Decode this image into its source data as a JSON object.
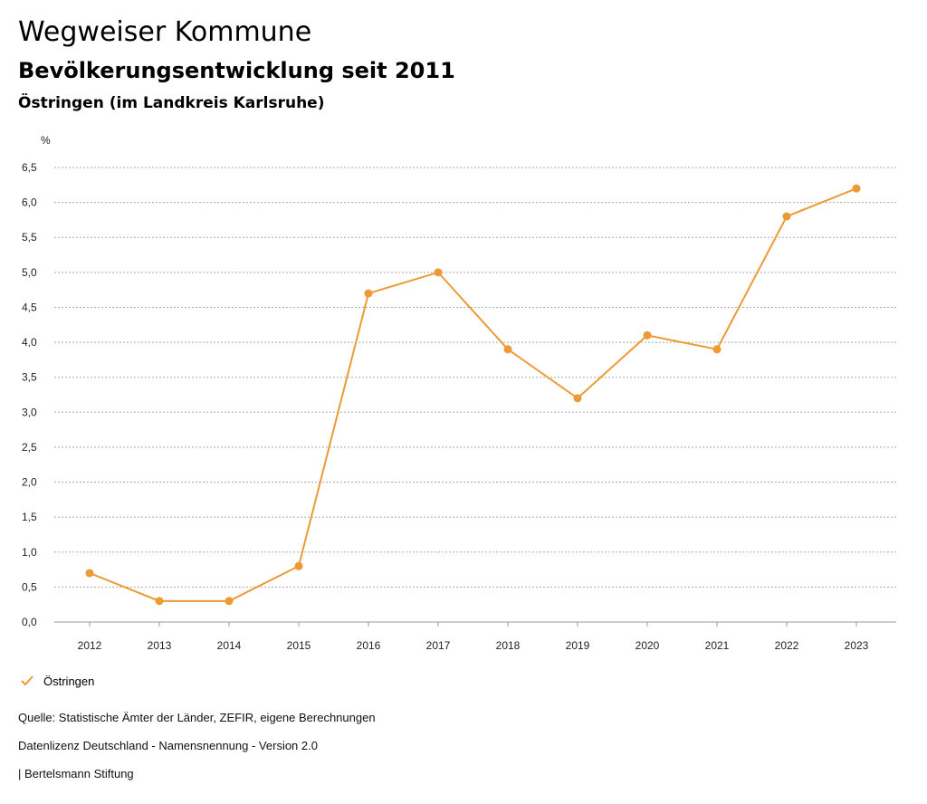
{
  "header": {
    "title": "Wegweiser Kommune",
    "subtitle": "Bevölkerungsentwicklung seit 2011",
    "region": "Östringen (im Landkreis Karlsruhe)"
  },
  "chart_data": {
    "type": "line",
    "unit_label": "%",
    "x": [
      "2012",
      "2013",
      "2014",
      "2015",
      "2016",
      "2017",
      "2018",
      "2019",
      "2020",
      "2021",
      "2022",
      "2023"
    ],
    "series": [
      {
        "name": "Östringen",
        "color": "#ec9a36",
        "values": [
          0.7,
          0.3,
          0.3,
          0.8,
          4.7,
          5.0,
          3.9,
          3.2,
          4.1,
          3.9,
          5.8,
          6.2
        ]
      }
    ],
    "ylim": [
      0,
      6.5
    ],
    "yticks": [
      "0,0",
      "0,5",
      "1,0",
      "1,5",
      "2,0",
      "2,5",
      "3,0",
      "3,5",
      "4,0",
      "4,5",
      "5,0",
      "5,5",
      "6,0",
      "6,5"
    ],
    "grid": true,
    "legend_position": "bottom-left"
  },
  "legend": {
    "label": "Östringen",
    "icon": "check-icon"
  },
  "footer": {
    "source": "Quelle: Statistische Ämter der Länder, ZEFIR, eigene Berechnungen",
    "license": "Datenlizenz Deutschland - Namensnennung - Version 2.0",
    "publisher": "| Bertelsmann Stiftung"
  }
}
